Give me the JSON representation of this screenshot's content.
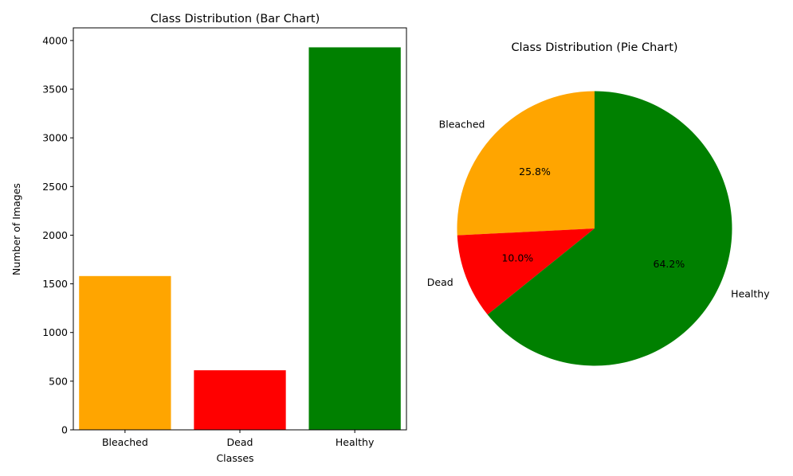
{
  "chart_data": [
    {
      "type": "bar",
      "title": "Class Distribution (Bar Chart)",
      "xlabel": "Classes",
      "ylabel": "Number of Images",
      "categories": [
        "Bleached",
        "Dead",
        "Healthy"
      ],
      "values": [
        1580,
        612,
        3930
      ],
      "colors": [
        "#ffa500",
        "#ff0000",
        "#008000"
      ],
      "ylim": [
        0,
        4130
      ],
      "yticks": [
        0,
        500,
        1000,
        1500,
        2000,
        2500,
        3000,
        3500,
        4000
      ],
      "grid": false
    },
    {
      "type": "pie",
      "title": "Class Distribution (Pie Chart)",
      "labels": [
        "Bleached",
        "Dead",
        "Healthy"
      ],
      "values": [
        25.8,
        10.0,
        64.2
      ],
      "pct_labels": [
        "25.8%",
        "10.0%",
        "64.2%"
      ],
      "colors": [
        "#ffa500",
        "#ff0000",
        "#008000"
      ],
      "start_angle": 90,
      "direction": "counterclockwise"
    }
  ]
}
